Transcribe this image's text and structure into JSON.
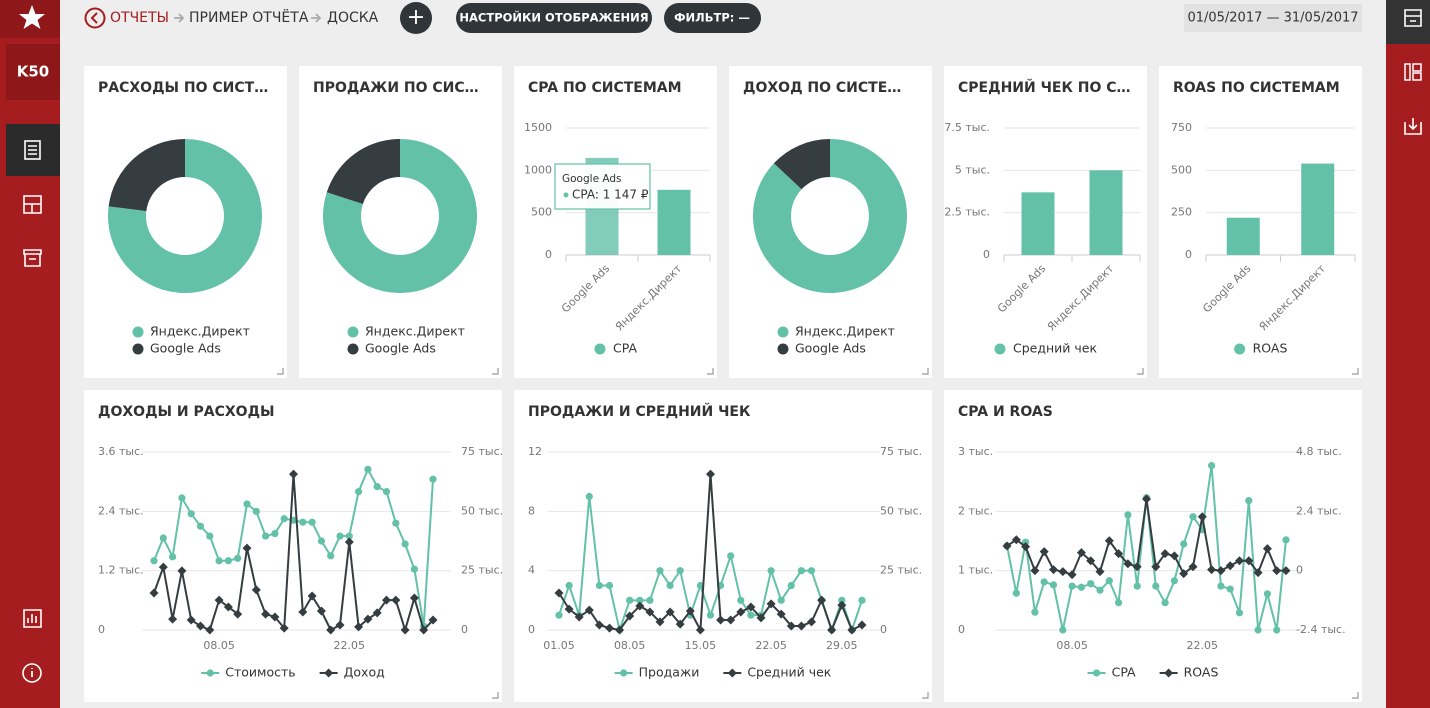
{
  "sidebar": {
    "logo": "K50"
  },
  "header": {
    "breadcrumbs": [
      "ОТЧЕТЫ",
      "ПРИМЕР ОТЧЁТА",
      "ДОСКА"
    ],
    "add": "+",
    "buttons": [
      "НАСТРОЙКИ ОТОБРАЖЕНИЯ",
      "ФИЛЬТР: —"
    ],
    "date_range": "01/05/2017 — 31/05/2017"
  },
  "widgets": [
    {
      "type": "donut",
      "title": "РАСХОДЫ ПО СИСТ…",
      "categories": [
        "Яндекс.Директ",
        "Google Ads"
      ],
      "values": [
        77,
        23
      ],
      "colors": [
        "#63c1a7",
        "#353d40"
      ]
    },
    {
      "type": "donut",
      "title": "ПРОДАЖИ ПО СИС…",
      "categories": [
        "Яндекс.Директ",
        "Google Ads"
      ],
      "values": [
        80,
        20
      ],
      "colors": [
        "#63c1a7",
        "#353d40"
      ]
    },
    {
      "type": "bar",
      "title": "CPA ПО СИСТЕМАМ",
      "categories": [
        "Google Ads",
        "Яндекс.Директ"
      ],
      "series": [
        {
          "name": "CPA",
          "color": "#63c1a7",
          "values": [
            1147,
            770
          ]
        }
      ],
      "ylim": [
        0,
        1500
      ],
      "yticks": [
        0,
        500,
        1000,
        1500
      ],
      "tooltip": {
        "title": "Google Ads",
        "text": "CPA: 1 147 ₽"
      }
    },
    {
      "type": "donut",
      "title": "ДОХОД ПО СИСТЕ…",
      "categories": [
        "Яндекс.Директ",
        "Google Ads"
      ],
      "values": [
        87,
        13
      ],
      "colors": [
        "#63c1a7",
        "#353d40"
      ]
    },
    {
      "type": "bar",
      "title": "СРЕДНИЙ ЧЕК ПО С…",
      "categories": [
        "Google Ads",
        "Яндекс.Директ"
      ],
      "series": [
        {
          "name": "Средний чек",
          "color": "#63c1a7",
          "values": [
            3700,
            5000
          ]
        }
      ],
      "ylim": [
        0,
        7500
      ],
      "yticks": [
        0,
        {
          "value": 2500,
          "label": "2.5 тыс."
        },
        {
          "value": 5000,
          "label": "5 тыс."
        },
        {
          "value": 7500,
          "label": "7.5 тыс."
        }
      ]
    },
    {
      "type": "bar",
      "title": "ROAS ПО СИСТЕМАМ",
      "categories": [
        "Google Ads",
        "Яндекс.Директ"
      ],
      "series": [
        {
          "name": "ROAS",
          "color": "#63c1a7",
          "values": [
            220,
            540
          ]
        }
      ],
      "ylim": [
        0,
        750
      ],
      "yticks": [
        0,
        250,
        500,
        750
      ]
    },
    {
      "type": "line",
      "title": "ДОХОДЫ И РАСХОДЫ",
      "x": [
        null,
        null,
        null,
        null,
        null,
        null,
        null,
        "08.05",
        null,
        null,
        null,
        null,
        null,
        null,
        null,
        null,
        null,
        null,
        null,
        null,
        null,
        "22.05",
        null,
        null,
        null,
        null,
        null,
        null,
        null,
        null,
        null
      ],
      "series": [
        {
          "name": "Стоимость",
          "color": "#63c1a7",
          "values": [
            1400,
            1860,
            1480,
            2670,
            2350,
            2100,
            1900,
            1400,
            1400,
            1450,
            2550,
            2400,
            1900,
            1950,
            2250,
            2220,
            2180,
            2180,
            1800,
            1500,
            1900,
            1900,
            2800,
            3250,
            2900,
            2800,
            2160,
            1740,
            1230,
            80,
            3050
          ]
        },
        {
          "name": "Доход",
          "color": "#353d40",
          "axis": "y2",
          "values": [
            15600,
            26500,
            4600,
            24900,
            4200,
            1700,
            0,
            12600,
            9700,
            6700,
            34500,
            16900,
            6700,
            5500,
            800,
            65700,
            7600,
            14300,
            8000,
            0,
            2100,
            37100,
            1300,
            4600,
            7200,
            12600,
            12600,
            0,
            13500,
            0,
            4200
          ]
        }
      ],
      "ylim": [
        0,
        3600
      ],
      "yticks": [
        0,
        {
          "value": 1200,
          "label": "1.2 тыс."
        },
        {
          "value": 2400,
          "label": "2.4 тыс."
        },
        {
          "value": 3600,
          "label": "3.6 тыс."
        }
      ],
      "y2lim": [
        0,
        75000
      ],
      "y2ticks": [
        0,
        {
          "value": 25000,
          "label": "25 тыс."
        },
        {
          "value": 50000,
          "label": "50 тыс."
        },
        {
          "value": 75000,
          "label": "75 тыс."
        }
      ]
    },
    {
      "type": "line",
      "title": "ПРОДАЖИ И СРЕДНИЙ ЧЕК",
      "x": [
        "01.05",
        null,
        null,
        null,
        null,
        null,
        null,
        "08.05",
        null,
        null,
        null,
        null,
        null,
        null,
        "15.05",
        null,
        null,
        null,
        null,
        null,
        null,
        "22.05",
        null,
        null,
        null,
        null,
        null,
        null,
        "29.05",
        null,
        null
      ],
      "series": [
        {
          "name": "Продажи",
          "color": "#63c1a7",
          "values": [
            1,
            3,
            1,
            9,
            3,
            3,
            0,
            2,
            2,
            2,
            4,
            3,
            4,
            1,
            3,
            1,
            3,
            5,
            2,
            1,
            1,
            4,
            2,
            3,
            4,
            4,
            2,
            0,
            2,
            0,
            2
          ]
        },
        {
          "name": "Средний чек",
          "color": "#353d40",
          "axis": "y2",
          "values": [
            15600,
            8800,
            5500,
            8400,
            2100,
            800,
            0,
            5900,
            10100,
            7600,
            3400,
            7600,
            2500,
            8000,
            0,
            65700,
            4200,
            4200,
            7600,
            9700,
            5100,
            11000,
            6700,
            1700,
            1700,
            3400,
            12600,
            0,
            10500,
            0,
            2100
          ]
        }
      ],
      "ylim": [
        0,
        12
      ],
      "yticks": [
        0,
        4,
        8,
        12
      ],
      "y2lim": [
        0,
        75000
      ],
      "y2ticks": [
        0,
        {
          "value": 25000,
          "label": "25 тыс."
        },
        {
          "value": 50000,
          "label": "50 тыс."
        },
        {
          "value": 75000,
          "label": "75 тыс."
        }
      ]
    },
    {
      "type": "line",
      "title": "CPA И ROAS",
      "x": [
        null,
        null,
        null,
        null,
        null,
        null,
        null,
        "08.05",
        null,
        null,
        null,
        null,
        null,
        null,
        null,
        null,
        null,
        null,
        null,
        null,
        null,
        "22.05",
        null,
        null,
        null,
        null,
        null,
        null,
        null,
        null,
        null
      ],
      "series": [
        {
          "name": "CPA",
          "color": "#63c1a7",
          "values": [
            1420,
            620,
            1480,
            300,
            810,
            760,
            0,
            740,
            720,
            780,
            670,
            830,
            460,
            1940,
            740,
            2230,
            740,
            460,
            830,
            1450,
            1910,
            1690,
            2770,
            740,
            690,
            290,
            2180,
            0,
            610,
            0,
            1520
          ]
        },
        {
          "name": "ROAS",
          "color": "#353d40",
          "axis": "y2",
          "values": [
            1000,
            1250,
            970,
            0,
            770,
            40,
            -40,
            -160,
            730,
            400,
            -40,
            1210,
            690,
            280,
            160,
            2900,
            160,
            690,
            600,
            -120,
            160,
            2180,
            40,
            0,
            200,
            400,
            400,
            -80,
            890,
            0,
            0
          ]
        }
      ],
      "ylim": [
        0,
        3000
      ],
      "yticks": [
        0,
        {
          "value": 1000,
          "label": "1 тыс."
        },
        {
          "value": 2000,
          "label": "2 тыс."
        },
        {
          "value": 3000,
          "label": "3 тыс."
        }
      ],
      "y2lim": [
        -2400,
        4800
      ],
      "y2ticks": [
        {
          "value": -2400,
          "label": "-2.4 тыс."
        },
        0,
        {
          "value": 2400,
          "label": "2.4 тыс."
        },
        {
          "value": 4800,
          "label": "4.8 тыс."
        }
      ]
    }
  ]
}
